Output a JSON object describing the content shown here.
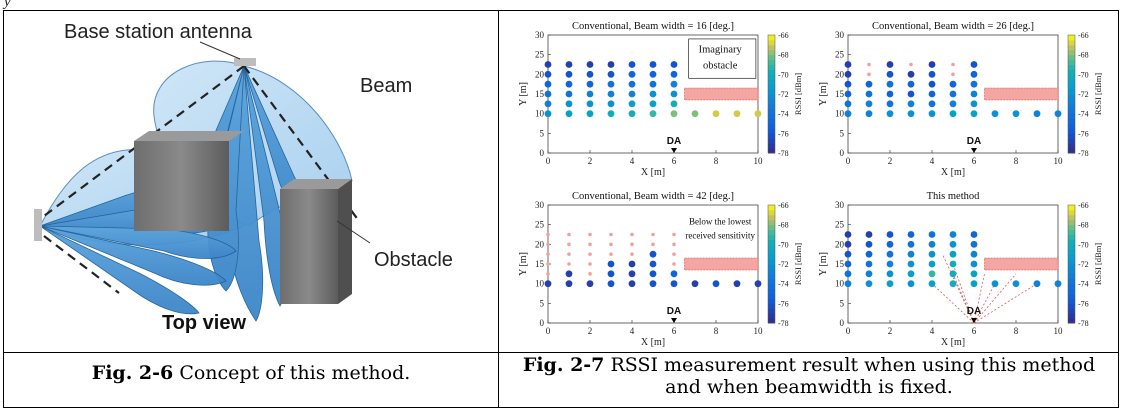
{
  "top_fragment": "y",
  "figure_left": {
    "labels": {
      "antenna": "Base station antenna",
      "beam": "Beam",
      "obstacle": "Obstacle",
      "view": "Top view"
    },
    "caption_fig": "Fig. 2-6",
    "caption_text": "Concept of this method."
  },
  "figure_right": {
    "caption_fig": "Fig. 2-7",
    "caption_text": "RSSI measurement result when using this method and when beamwidth is fixed.",
    "colorbar_label": "RSSI [dBm]",
    "colorbar_ticks": [
      "-66",
      "-68",
      "-70",
      "-72",
      "-74",
      "-76",
      "-78"
    ],
    "annot_imaginary": "Imaginary",
    "annot_obstacle": "obstacle",
    "annot_below1": "Below the lowest",
    "annot_below2": "received sensitivity"
  },
  "chart_data": [
    {
      "type": "scatter",
      "title": "Conventional, Beam width = 16 [deg.]",
      "xlabel": "X [m]",
      "ylabel": "Y [m]",
      "xlim": [
        0,
        10
      ],
      "ylim": [
        0,
        30
      ],
      "xticks": [
        "0",
        "2",
        "4",
        "6",
        "8",
        "10"
      ],
      "yticks": [
        "0",
        "5",
        "10",
        "15",
        "20",
        "25",
        "30"
      ],
      "colorbar": {
        "label": "RSSI [dBm]",
        "range": [
          -78,
          -66
        ]
      },
      "marker": "DA",
      "marker_x": 6,
      "marker_y": 0,
      "obstacle": {
        "x": [
          6.5,
          10
        ],
        "y": [
          13.5,
          16.5
        ],
        "label": "Imaginary obstacle"
      },
      "grid_x": [
        0,
        1,
        2,
        3,
        4,
        5,
        6,
        7,
        8,
        9,
        10
      ],
      "grid_y": [
        10,
        12.5,
        15,
        17.5,
        20,
        22.5
      ],
      "rssi": [
        [
          -72,
          -71,
          -71,
          -70,
          -70,
          -69,
          -68,
          -68,
          -67,
          -67,
          -67
        ],
        [
          -73,
          -72,
          -72,
          -72,
          -71,
          -71,
          -70,
          null,
          null,
          null,
          null
        ],
        [
          -74,
          -74,
          -73,
          -73,
          -73,
          -72,
          -72,
          null,
          null,
          null,
          null
        ],
        [
          -75,
          -75,
          -75,
          -74,
          -74,
          -74,
          -73,
          null,
          null,
          null,
          null
        ],
        [
          -76,
          -76,
          -76,
          -76,
          -75,
          -75,
          -75,
          null,
          null,
          null,
          null
        ],
        [
          -77,
          -77,
          -77,
          -77,
          -76,
          -76,
          -76,
          null,
          null,
          null,
          null
        ]
      ]
    },
    {
      "type": "scatter",
      "title": "Conventional, Beam width = 26 [deg.]",
      "xlabel": "X [m]",
      "ylabel": "Y [m]",
      "xlim": [
        0,
        10
      ],
      "ylim": [
        0,
        30
      ],
      "xticks": [
        "0",
        "2",
        "4",
        "6",
        "8",
        "10"
      ],
      "yticks": [
        "0",
        "5",
        "10",
        "15",
        "20",
        "25",
        "30"
      ],
      "colorbar": {
        "label": "RSSI [dBm]",
        "range": [
          -78,
          -66
        ]
      },
      "marker": "DA",
      "marker_x": 6,
      "marker_y": 0,
      "obstacle": {
        "x": [
          6.5,
          10
        ],
        "y": [
          13.5,
          16.5
        ]
      },
      "grid_x": [
        0,
        1,
        2,
        3,
        4,
        5,
        6,
        7,
        8,
        9,
        10
      ],
      "grid_y": [
        10,
        12.5,
        15,
        17.5,
        20,
        22.5
      ],
      "rssi": [
        [
          -73,
          -73,
          -72,
          -72,
          -72,
          -71,
          -71,
          -72,
          -72,
          -73,
          -73
        ],
        [
          -74,
          -73,
          -74,
          -73,
          -74,
          -73,
          -72,
          null,
          null,
          null,
          null
        ],
        [
          -75,
          -74,
          -75,
          -76,
          -75,
          -74,
          -73,
          null,
          null,
          null,
          null
        ],
        [
          -76,
          -75,
          -74,
          -75,
          -76,
          -75,
          -74,
          null,
          null,
          null,
          null
        ],
        [
          -77,
          "low",
          -76,
          -77,
          -76,
          "low",
          -75,
          null,
          null,
          null,
          null
        ],
        [
          -77,
          "low",
          -77,
          "low",
          -77,
          "low",
          -76,
          null,
          null,
          null,
          null
        ]
      ]
    },
    {
      "type": "scatter",
      "title": "Conventional, Beam width = 42 [deg.]",
      "xlabel": "X [m]",
      "ylabel": "Y [m]",
      "xlim": [
        0,
        10
      ],
      "ylim": [
        0,
        30
      ],
      "xticks": [
        "0",
        "2",
        "4",
        "6",
        "8",
        "10"
      ],
      "yticks": [
        "0",
        "5",
        "10",
        "15",
        "20",
        "25",
        "30"
      ],
      "colorbar": {
        "label": "RSSI [dBm]",
        "range": [
          -78,
          -66
        ]
      },
      "marker": "DA",
      "marker_x": 6,
      "marker_y": 0,
      "obstacle": {
        "x": [
          6.5,
          10
        ],
        "y": [
          13.5,
          16.5
        ]
      },
      "annotation": "Below the lowest received sensitivity",
      "grid_x": [
        0,
        1,
        2,
        3,
        4,
        5,
        6,
        7,
        8,
        9,
        10
      ],
      "grid_y": [
        10,
        12.5,
        15,
        17.5,
        20,
        22.5
      ],
      "rssi": [
        [
          -77,
          -77,
          -77,
          -76,
          -77,
          -76,
          -76,
          -77,
          -76,
          -77,
          -77
        ],
        [
          "low",
          -77,
          "low",
          -76,
          -77,
          -76,
          -75,
          null,
          null,
          null,
          null
        ],
        [
          "low",
          "low",
          "low",
          -76,
          -77,
          -76,
          "low",
          null,
          null,
          null,
          null
        ],
        [
          "low",
          "low",
          "low",
          "low",
          "low",
          -76,
          "low",
          null,
          null,
          null,
          null
        ],
        [
          "low",
          "low",
          "low",
          "low",
          "low",
          "low",
          "low",
          null,
          null,
          null,
          null
        ],
        [
          "low",
          "low",
          "low",
          "low",
          "low",
          "low",
          "low",
          null,
          null,
          null,
          null
        ]
      ]
    },
    {
      "type": "scatter",
      "title": "This method",
      "xlabel": "X [m]",
      "ylabel": "Y [m]",
      "xlim": [
        0,
        10
      ],
      "ylim": [
        0,
        30
      ],
      "xticks": [
        "0",
        "2",
        "4",
        "6",
        "8",
        "10"
      ],
      "yticks": [
        "0",
        "5",
        "10",
        "15",
        "20",
        "25",
        "30"
      ],
      "colorbar": {
        "label": "RSSI [dBm]",
        "range": [
          -78,
          -66
        ]
      },
      "marker": "DA",
      "marker_x": 6,
      "marker_y": 0,
      "obstacle": {
        "x": [
          6.5,
          10
        ],
        "y": [
          13.5,
          16.5
        ]
      },
      "grid_x": [
        0,
        1,
        2,
        3,
        4,
        5,
        6,
        7,
        8,
        9,
        10
      ],
      "grid_y": [
        10,
        12.5,
        15,
        17.5,
        20,
        22.5
      ],
      "rssi": [
        [
          -73,
          -72,
          -71,
          -72,
          -71,
          -70,
          -71,
          -72,
          -72,
          -73,
          -73
        ],
        [
          -74,
          -73,
          -72,
          -71,
          -69,
          -70,
          -71,
          null,
          null,
          null,
          null
        ],
        [
          -75,
          -74,
          -73,
          -72,
          -71,
          -70,
          -72,
          null,
          null,
          null,
          null
        ],
        [
          -76,
          -75,
          -74,
          -73,
          -72,
          -71,
          -73,
          null,
          null,
          null,
          null
        ],
        [
          -77,
          -76,
          -75,
          -74,
          -73,
          -72,
          -74,
          null,
          null,
          null,
          null
        ],
        [
          -77,
          -77,
          -76,
          -75,
          -74,
          -73,
          -75,
          null,
          null,
          null,
          null
        ]
      ]
    }
  ]
}
